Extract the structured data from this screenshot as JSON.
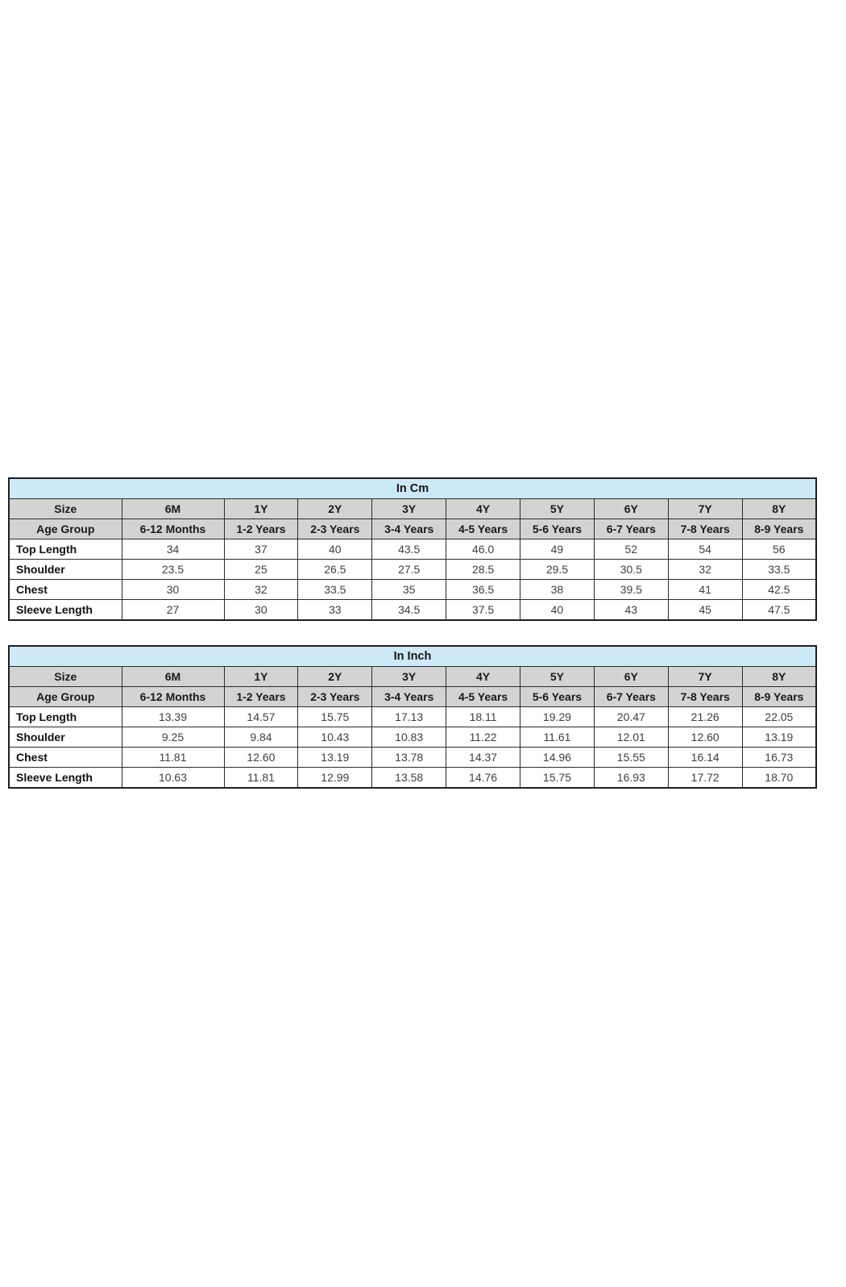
{
  "colors": {
    "title_bg": "#cde8f7",
    "header_bg": "#d3d3d3",
    "border": "#1f1f1f",
    "value_text": "#3f3f3f"
  },
  "tables": [
    {
      "title": "In Cm",
      "size_label": "Size",
      "sizes": [
        "6M",
        "1Y",
        "2Y",
        "3Y",
        "4Y",
        "5Y",
        "6Y",
        "7Y",
        "8Y"
      ],
      "age_label": "Age Group",
      "ages": [
        "6-12 Months",
        "1-2 Years",
        "2-3 Years",
        "3-4 Years",
        "4-5 Years",
        "5-6 Years",
        "6-7 Years",
        "7-8 Years",
        "8-9 Years"
      ],
      "rows": [
        {
          "label": "Top Length",
          "values": [
            "34",
            "37",
            "40",
            "43.5",
            "46.0",
            "49",
            "52",
            "54",
            "56"
          ]
        },
        {
          "label": "Shoulder",
          "values": [
            "23.5",
            "25",
            "26.5",
            "27.5",
            "28.5",
            "29.5",
            "30.5",
            "32",
            "33.5"
          ]
        },
        {
          "label": "Chest",
          "values": [
            "30",
            "32",
            "33.5",
            "35",
            "36.5",
            "38",
            "39.5",
            "41",
            "42.5"
          ]
        },
        {
          "label": "Sleeve Length",
          "values": [
            "27",
            "30",
            "33",
            "34.5",
            "37.5",
            "40",
            "43",
            "45",
            "47.5"
          ]
        }
      ]
    },
    {
      "title": "In Inch",
      "size_label": "Size",
      "sizes": [
        "6M",
        "1Y",
        "2Y",
        "3Y",
        "4Y",
        "5Y",
        "6Y",
        "7Y",
        "8Y"
      ],
      "age_label": "Age Group",
      "ages": [
        "6-12 Months",
        "1-2 Years",
        "2-3 Years",
        "3-4 Years",
        "4-5 Years",
        "5-6 Years",
        "6-7 Years",
        "7-8 Years",
        "8-9 Years"
      ],
      "rows": [
        {
          "label": "Top Length",
          "values": [
            "13.39",
            "14.57",
            "15.75",
            "17.13",
            "18.11",
            "19.29",
            "20.47",
            "21.26",
            "22.05"
          ]
        },
        {
          "label": "Shoulder",
          "values": [
            "9.25",
            "9.84",
            "10.43",
            "10.83",
            "11.22",
            "11.61",
            "12.01",
            "12.60",
            "13.19"
          ]
        },
        {
          "label": "Chest",
          "values": [
            "11.81",
            "12.60",
            "13.19",
            "13.78",
            "14.37",
            "14.96",
            "15.55",
            "16.14",
            "16.73"
          ]
        },
        {
          "label": "Sleeve Length",
          "values": [
            "10.63",
            "11.81",
            "12.99",
            "13.58",
            "14.76",
            "15.75",
            "16.93",
            "17.72",
            "18.70"
          ]
        }
      ]
    }
  ]
}
